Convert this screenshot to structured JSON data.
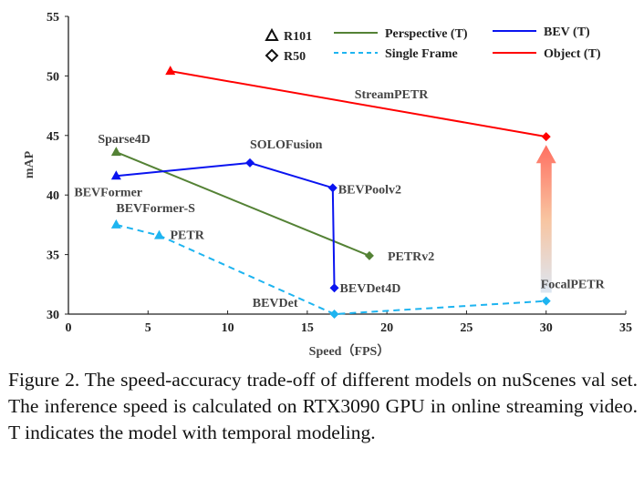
{
  "chart_data": {
    "type": "line",
    "title": "",
    "xlabel": "Speed（FPS）",
    "ylabel": "mAP",
    "xlim": [
      0,
      35
    ],
    "ylim": [
      30,
      55
    ],
    "xticks": [
      "0",
      "5",
      "10",
      "15",
      "20",
      "25",
      "30",
      "35"
    ],
    "yticks": [
      "30",
      "35",
      "40",
      "45",
      "50",
      "55"
    ],
    "grid": false,
    "legend_position": "top-right",
    "markers_legend": [
      {
        "label": "R101",
        "marker": "triangle"
      },
      {
        "label": "R50",
        "marker": "diamond"
      }
    ],
    "series": [
      {
        "name": "Perspective (T)",
        "color": "#548235",
        "dash": false,
        "points": [
          {
            "label": "Sparse4D",
            "x": 3.0,
            "y": 43.6,
            "marker": "triangle"
          },
          {
            "label": "PETRv2",
            "x": 18.9,
            "y": 34.9,
            "marker": "diamond"
          }
        ]
      },
      {
        "name": "Single Frame",
        "color": "#1EB4F0",
        "dash": true,
        "points": [
          {
            "label": "BEVFormer-S",
            "x": 3.0,
            "y": 37.5,
            "marker": "triangle"
          },
          {
            "label": "PETR",
            "x": 5.7,
            "y": 36.6,
            "marker": "triangle"
          },
          {
            "label": "BEVDet",
            "x": 16.7,
            "y": 30.0,
            "marker": "diamond"
          },
          {
            "label": "FocalPETR",
            "x": 30.0,
            "y": 31.1,
            "marker": "diamond"
          }
        ]
      },
      {
        "name": "BEV (T)",
        "color": "#0A14F0",
        "dash": false,
        "points": [
          {
            "label": "BEVFormer",
            "x": 3.0,
            "y": 41.6,
            "marker": "triangle"
          },
          {
            "label": "SOLOFusion",
            "x": 11.4,
            "y": 42.7,
            "marker": "diamond"
          },
          {
            "label": "BEVPoolv2",
            "x": 16.6,
            "y": 40.6,
            "marker": "diamond"
          },
          {
            "label": "BEVDet4D",
            "x": 16.7,
            "y": 32.2,
            "marker": "diamond"
          }
        ]
      },
      {
        "name": "Object (T)",
        "color": "#FF0000",
        "dash": false,
        "points": [
          {
            "label": "StreamPETR",
            "x": 6.4,
            "y": 50.4,
            "marker": "triangle"
          },
          {
            "label": "",
            "x": 30.0,
            "y": 44.9,
            "marker": "diamond"
          }
        ]
      }
    ],
    "annotations": [
      {
        "type": "arrow",
        "x": 30,
        "from_y": 31.8,
        "to_y": 44.2,
        "colors": [
          "#DCE6F2",
          "#FF6F61"
        ]
      }
    ]
  },
  "caption": "Figure 2. The speed-accuracy trade-off of different models on nuScenes val set. The inference speed is calculated on RTX3090 GPU in online streaming video. T indicates the model with temporal modeling."
}
